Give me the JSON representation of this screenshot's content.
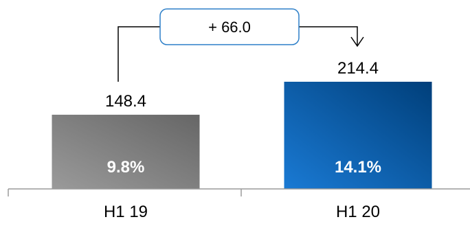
{
  "chart_data": {
    "type": "bar",
    "categories": [
      "H1 19",
      "H1 20"
    ],
    "values": [
      148.4,
      214.4
    ],
    "value_labels": [
      "148.4",
      "214.4"
    ],
    "bar_inner_labels": [
      "9.8%",
      "14.1%"
    ],
    "delta_label": "+ 66.0",
    "title": "",
    "xlabel": "",
    "ylabel": "",
    "ylim": [
      0,
      214.4
    ],
    "grid": false,
    "legend": "none",
    "colors": {
      "bar_1_light": "#9a9a9a",
      "bar_1_dark": "#666666",
      "bar_2_light": "#1a7ad4",
      "bar_2_dark": "#003f7a",
      "delta_box_border": "#2d7fc8",
      "axis": "#9a9a9a"
    }
  }
}
